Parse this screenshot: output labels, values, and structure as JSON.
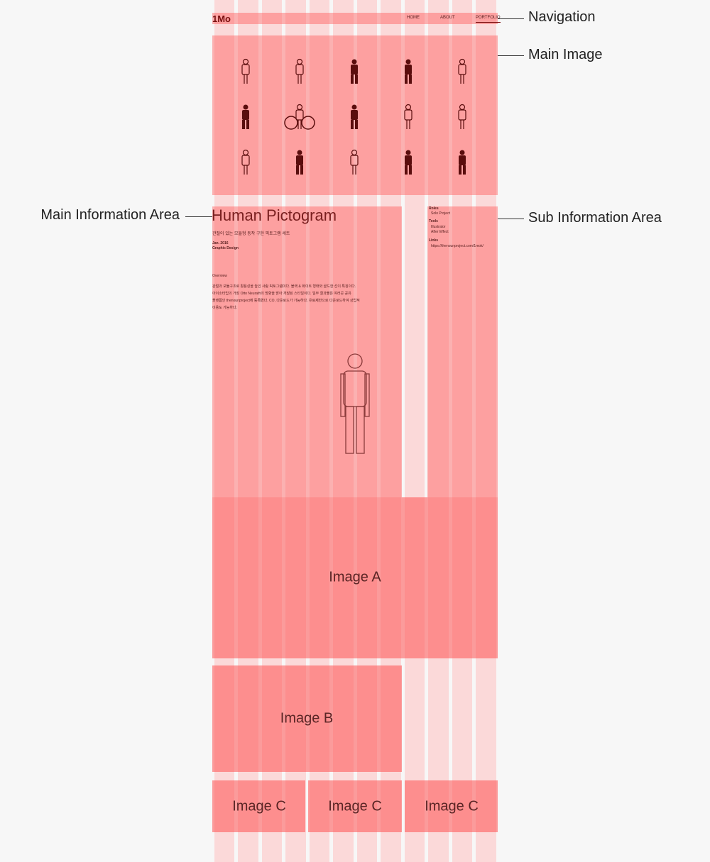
{
  "annotations": {
    "navigation": "Navigation",
    "main_image": "Main Image",
    "main_information": "Main Information Area",
    "sub_information": "Sub Information Area"
  },
  "nav": {
    "logo": "1Mo",
    "links": [
      "HOME",
      "ABOUT",
      "PORTFOLIO"
    ]
  },
  "main_info": {
    "title": "Human Pictogram",
    "subtitle": "관절이 있는 모듈형 동작 구현 픽토그램 세트",
    "date": "Jan. 2016",
    "category": "Graphic Design",
    "overview_heading": "Overview",
    "overview_lines": [
      "관절과 모듈구조로 활용성을 높인 사람 픽토그램이다. 블랙 & 화이트 형태와 골드한 선이 특징이다.",
      "아이소타입의 거장 Otto Neurath의 방향을 받아 개발된 스타일이다. 일부 결과물은 여러곳 공유",
      "플랫폼인 thenounproject에 등록했다. CO, 다운로드가 가능하다. 유료제한으로 다운로드하여 상업적",
      "이용도 가능하다."
    ]
  },
  "sub_info": {
    "roles_heading": "Roles",
    "roles": "Solo Project",
    "tools_heading": "Tools",
    "tools": [
      "Illustrator",
      "After Effect"
    ],
    "links_heading": "Links",
    "link": "https://thenounproject.com/1mok/"
  },
  "images": {
    "a": "Image A",
    "b": "Image B",
    "c": [
      "Image C",
      "Image C",
      "Image C"
    ]
  }
}
